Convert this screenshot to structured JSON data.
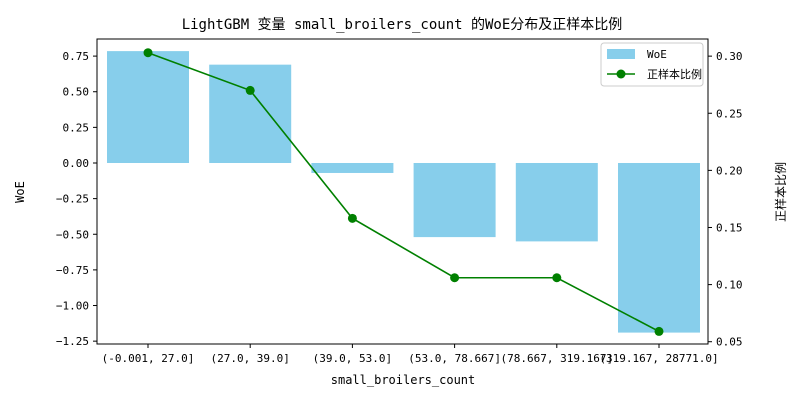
{
  "chart_data": {
    "type": "bar",
    "title": "LightGBM 变量 small_broilers_count 的WoE分布及正样本比例",
    "xlabel": "small_broilers_count",
    "ylabel": "WoE",
    "y2label": "正样本比例",
    "categories": [
      "(-0.001, 27.0]",
      "(27.0, 39.0]",
      "(39.0, 53.0]",
      "(53.0, 78.667]",
      "(78.667, 319.167]",
      "(319.167, 28771.0]"
    ],
    "series": [
      {
        "name": "WoE",
        "type": "bar",
        "axis": "left",
        "color": "#87ceeb",
        "values": [
          0.785,
          0.69,
          -0.07,
          -0.52,
          -0.55,
          -1.19
        ]
      },
      {
        "name": "正样本比例",
        "type": "line",
        "axis": "right",
        "color": "#008000",
        "values": [
          0.303,
          0.27,
          0.158,
          0.106,
          0.106,
          0.059
        ]
      }
    ],
    "ylim": [
      -1.27,
      0.87
    ],
    "y2lim": [
      0.048,
      0.315
    ],
    "yticks": [
      0.75,
      0.5,
      0.25,
      0.0,
      -0.25,
      -0.5,
      -0.75,
      -1.0,
      -1.25
    ],
    "ytick_labels": [
      "0.75",
      "0.50",
      "0.25",
      "0.00",
      "−0.25",
      "−0.50",
      "−0.75",
      "−1.00",
      "−1.25"
    ],
    "y2ticks": [
      0.05,
      0.1,
      0.15,
      0.2,
      0.25,
      0.3
    ],
    "y2tick_labels": [
      "0.05",
      "0.10",
      "0.15",
      "0.20",
      "0.25",
      "0.30"
    ],
    "legend_position": "top-right",
    "grid": false
  }
}
